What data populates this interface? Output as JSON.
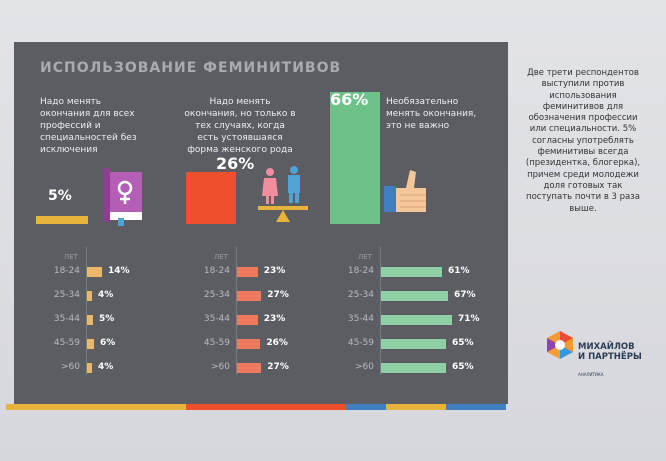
{
  "title": "ИСПОЛЬЗОВАНИЕ ФЕМИНИТИВОВ",
  "groups": [
    {
      "label": "Надо менять окончания для всех профессий и специальностей без исключения",
      "value": "5%"
    },
    {
      "label": "Надо менять окончания, но только в тех случаях, когда есть устоявшаяся форма женского рода",
      "value": "26%"
    },
    {
      "label": "Необязательно менять окончания, это не важно",
      "value": "66%"
    }
  ],
  "age_header": "ЛЕТ",
  "side_text": "Две трети респондентов выступили против использования феминитивов для обозначения профессии или специальности. 5% согласны употреблять феминитивы всегда (президентка, блогерка), причем среди молодежи доля готовых так поступать почти в 3 раза выше.",
  "logo": {
    "line1": "МИХАЙЛОВ",
    "line2": "И ПАРТНЁРЫ",
    "sub": "АНАЛИТИКА"
  },
  "colors": {
    "g1": "#e8b86d",
    "g2": "#ec7a5e",
    "g3": "#8fcfa6",
    "big1": "#e8b33a",
    "big2": "#ef4f2c",
    "big3": "#6fc18a"
  },
  "chart_data": {
    "type": "bar",
    "title": "ИСПОЛЬЗОВАНИЕ ФЕМИНИТИВОВ",
    "ylabel": "%",
    "overall": [
      5,
      26,
      66
    ],
    "categories": [
      "18-24",
      "25-34",
      "35-44",
      "45-59",
      ">60"
    ],
    "series": [
      {
        "values": [
          14,
          4,
          5,
          6,
          4
        ]
      },
      {
        "values": [
          23,
          27,
          23,
          26,
          27
        ]
      },
      {
        "values": [
          61,
          67,
          71,
          65,
          65
        ]
      }
    ]
  }
}
